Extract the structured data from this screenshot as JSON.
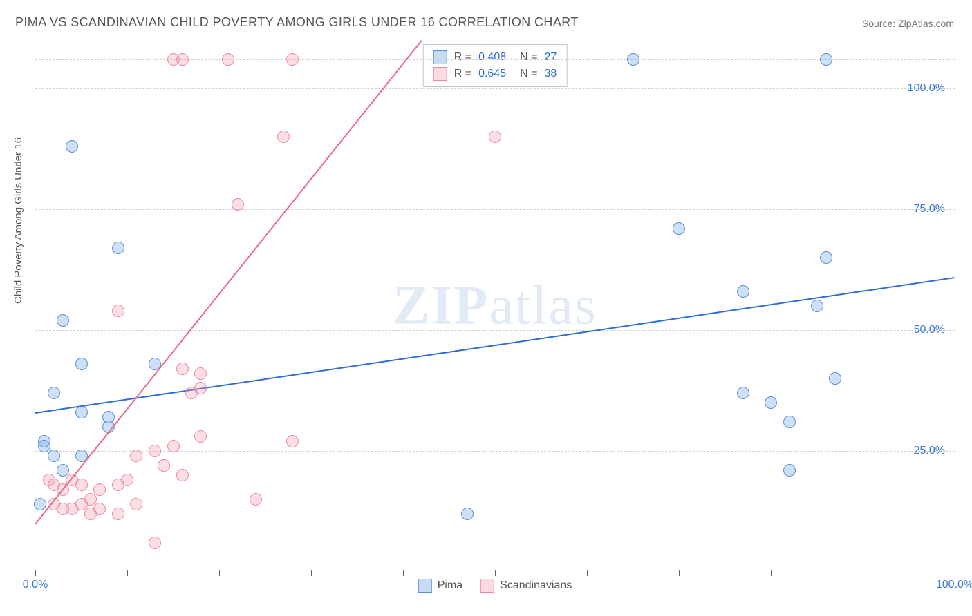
{
  "title": "PIMA VS SCANDINAVIAN CHILD POVERTY AMONG GIRLS UNDER 16 CORRELATION CHART",
  "source_prefix": "Source: ",
  "source_name": "ZipAtlas.com",
  "watermark_a": "ZIP",
  "watermark_b": "atlas",
  "chart": {
    "type": "scatter",
    "ylabel": "Child Poverty Among Girls Under 16",
    "xlim": [
      0,
      100
    ],
    "ylim": [
      0,
      110
    ],
    "xtick_positions": [
      0,
      10,
      20,
      30,
      40,
      50,
      60,
      70,
      80,
      90,
      100
    ],
    "xtick_labels": {
      "0": "0.0%",
      "100": "100.0%"
    },
    "ytick_positions": [
      25,
      50,
      75,
      100
    ],
    "ytick_labels": {
      "25": "25.0%",
      "50": "50.0%",
      "75": "75.0%",
      "100": "100.0%"
    },
    "grid_color": "#d0d0d0",
    "axis_color": "#666666",
    "background_color": "#ffffff",
    "series": [
      {
        "name": "Pima",
        "marker_color_fill": "rgba(115,165,225,0.35)",
        "marker_color_stroke": "#5a8fd6",
        "line_color": "#2b6cd4",
        "r": 0.408,
        "n": 27,
        "trend": {
          "x1": 0,
          "y1": 33,
          "x2": 100,
          "y2": 61
        },
        "points": [
          [
            4,
            88
          ],
          [
            9,
            67
          ],
          [
            65,
            106
          ],
          [
            86,
            106
          ],
          [
            70,
            71
          ],
          [
            86,
            65
          ],
          [
            77,
            58
          ],
          [
            85,
            55
          ],
          [
            87,
            40
          ],
          [
            77,
            37
          ],
          [
            80,
            35
          ],
          [
            82,
            31
          ],
          [
            82,
            21
          ],
          [
            47,
            12
          ],
          [
            3,
            52
          ],
          [
            5,
            43
          ],
          [
            13,
            43
          ],
          [
            2,
            37
          ],
          [
            5,
            33
          ],
          [
            8,
            30
          ],
          [
            8,
            32
          ],
          [
            1,
            27
          ],
          [
            1,
            26
          ],
          [
            2,
            24
          ],
          [
            5,
            24
          ],
          [
            3,
            21
          ],
          [
            0.5,
            14
          ]
        ]
      },
      {
        "name": "Scandinavians",
        "marker_color_fill": "rgba(245,150,170,0.30)",
        "marker_color_stroke": "#e98ba0",
        "line_color": "#e76a8a",
        "r": 0.645,
        "n": 38,
        "trend": {
          "x1": 0,
          "y1": 10,
          "x2": 42,
          "y2": 110
        },
        "points": [
          [
            15,
            106
          ],
          [
            16,
            106
          ],
          [
            21,
            106
          ],
          [
            28,
            106
          ],
          [
            50,
            90
          ],
          [
            27,
            90
          ],
          [
            22,
            76
          ],
          [
            9,
            54
          ],
          [
            16,
            42
          ],
          [
            18,
            41
          ],
          [
            17,
            37
          ],
          [
            18,
            38
          ],
          [
            28,
            27
          ],
          [
            24,
            15
          ],
          [
            18,
            28
          ],
          [
            15,
            26
          ],
          [
            13,
            25
          ],
          [
            14,
            22
          ],
          [
            11,
            24
          ],
          [
            16,
            20
          ],
          [
            11,
            14
          ],
          [
            10,
            19
          ],
          [
            9,
            18
          ],
          [
            9,
            12
          ],
          [
            13,
            6
          ],
          [
            7,
            17
          ],
          [
            7,
            13
          ],
          [
            6,
            15
          ],
          [
            6,
            12
          ],
          [
            5,
            18
          ],
          [
            5,
            14
          ],
          [
            4,
            19
          ],
          [
            4,
            13
          ],
          [
            3,
            17
          ],
          [
            3,
            13
          ],
          [
            2,
            18
          ],
          [
            2,
            14
          ],
          [
            1.5,
            19
          ]
        ]
      }
    ],
    "legend_r_label": "R =",
    "legend_n_label": "N ="
  }
}
